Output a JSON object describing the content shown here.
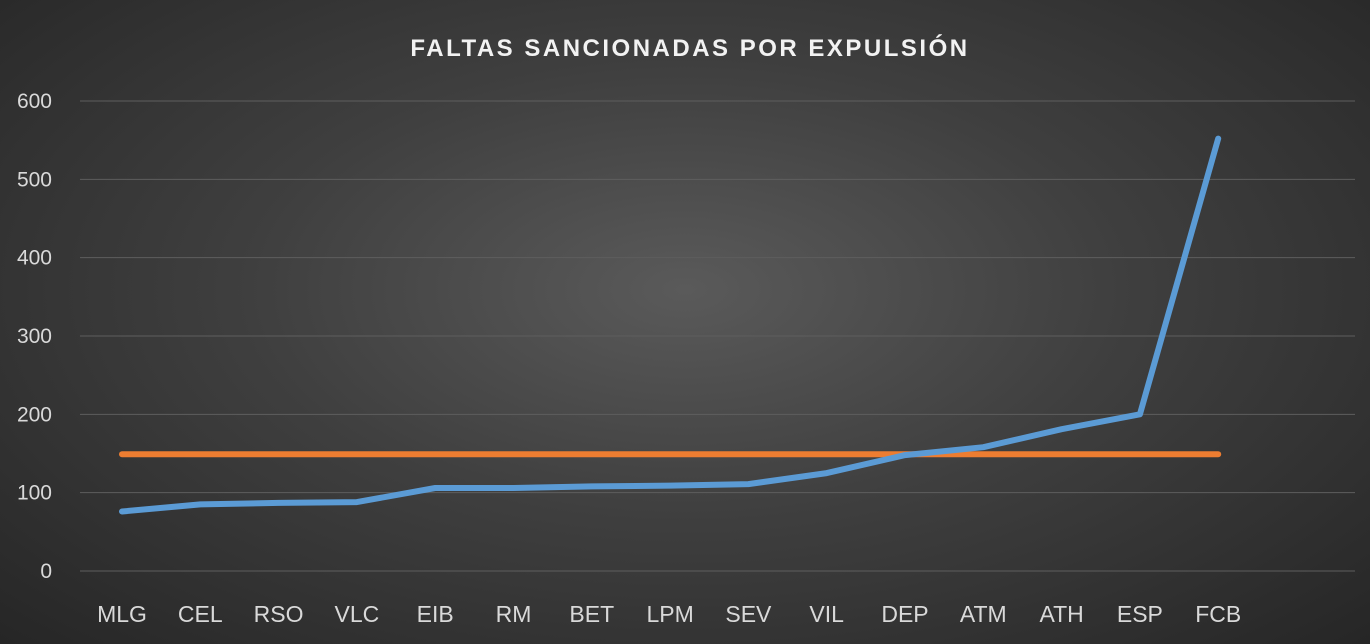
{
  "chart_data": {
    "type": "line",
    "title": "FALTAS SANCIONADAS POR EXPULSIÓN",
    "xlabel": "",
    "ylabel": "",
    "categories": [
      "MLG",
      "CEL",
      "RSO",
      "VLC",
      "EIB",
      "RM",
      "BET",
      "LPM",
      "SEV",
      "VIL",
      "DEP",
      "ATM",
      "ATH",
      "ESP",
      "FCB"
    ],
    "ylim": [
      0,
      600
    ],
    "yticks": [
      0,
      100,
      200,
      300,
      400,
      500,
      600
    ],
    "grid": true,
    "legend": "none",
    "series": [
      {
        "color": "#5b9bd5",
        "values": [
          76,
          85,
          87,
          88,
          106,
          106,
          108,
          109,
          111,
          125,
          148,
          158,
          181,
          200,
          552
        ]
      },
      {
        "color": "#ed7d31",
        "values": [
          149,
          149,
          149,
          149,
          149,
          149,
          149,
          149,
          149,
          149,
          149,
          149,
          149,
          149,
          149
        ]
      }
    ]
  }
}
